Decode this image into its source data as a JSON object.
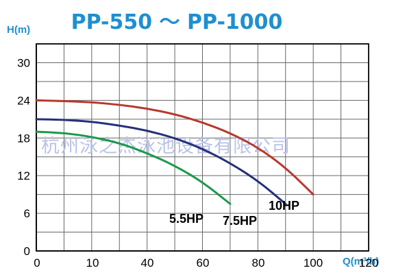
{
  "chart_data": {
    "type": "line",
    "title": "PP-550 ～ PP-1000",
    "ylabel": "H(m)",
    "xlabel": "Q(m³/h)",
    "xlim": [
      0,
      120
    ],
    "ylim": [
      0,
      30
    ],
    "x_ticks": [
      "0",
      "10",
      "20",
      "40",
      "60",
      "80",
      "100",
      "120"
    ],
    "y_ticks": [
      "0",
      "6",
      "12",
      "18",
      "24",
      "30"
    ],
    "grid": true,
    "series": [
      {
        "name": "5.5HP",
        "color": "#1a9a4a",
        "x": [
          0,
          10,
          20,
          30,
          40,
          50,
          60,
          70
        ],
        "y": [
          19,
          18.8,
          18.2,
          17.2,
          15.6,
          13.6,
          11,
          7.5
        ]
      },
      {
        "name": "7.5HP",
        "color": "#24307a",
        "x": [
          0,
          10,
          20,
          30,
          40,
          50,
          60,
          70,
          80,
          90
        ],
        "y": [
          21,
          20.9,
          20.6,
          20,
          19.2,
          18,
          16.3,
          14,
          11.2,
          7.5
        ]
      },
      {
        "name": "10HP",
        "color": "#b8382e",
        "x": [
          0,
          10,
          20,
          30,
          40,
          50,
          60,
          70,
          80,
          90,
          100
        ],
        "y": [
          24,
          23.9,
          23.7,
          23.3,
          22.7,
          21.8,
          20.5,
          18.8,
          16.5,
          13.3,
          9
        ]
      }
    ]
  },
  "watermark": "杭州泳之杰泳池设备有限公司"
}
